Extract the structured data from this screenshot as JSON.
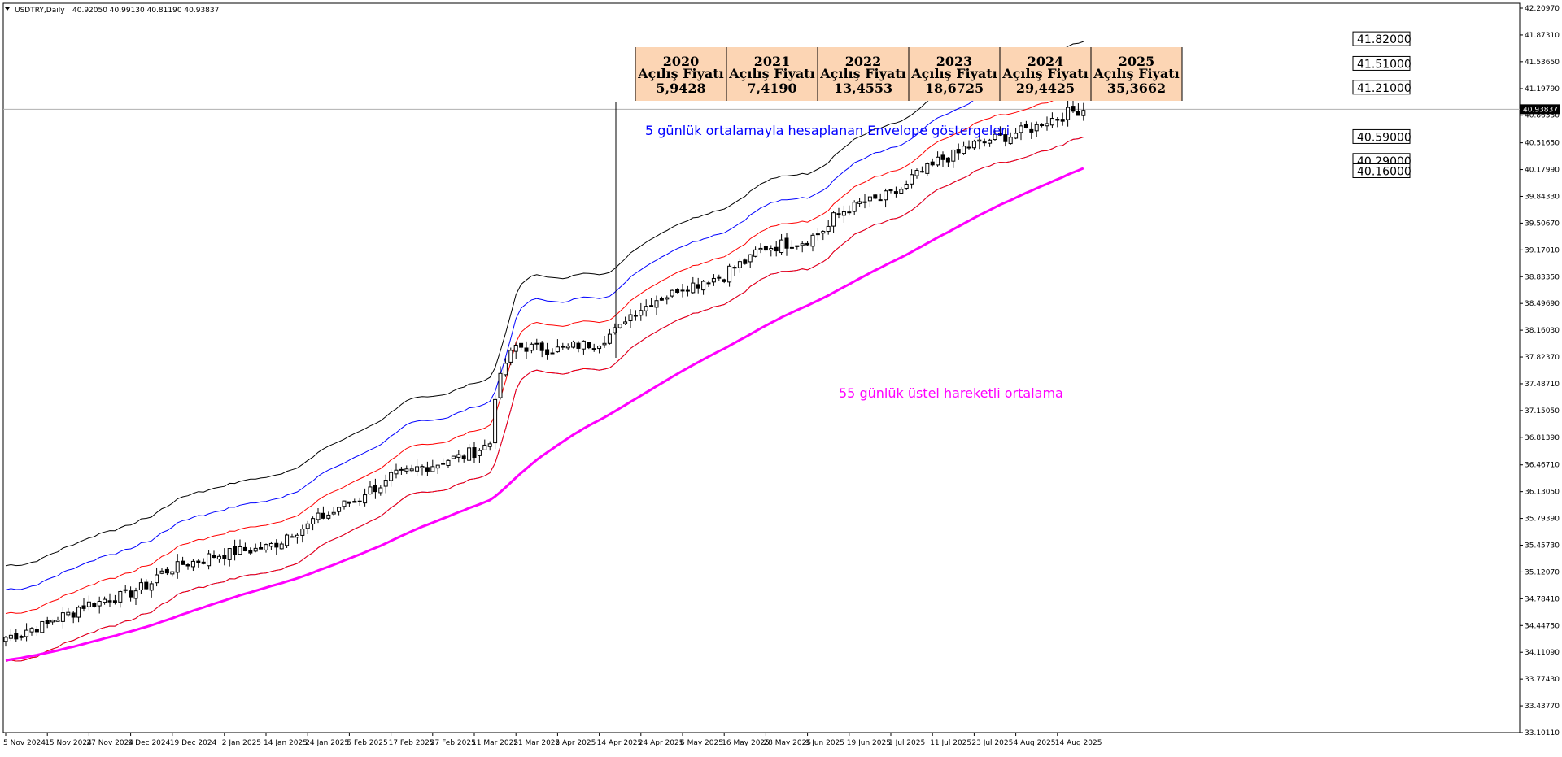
{
  "window": {
    "symbol_label": "USDTRY,Daily",
    "ohlc_label": "40.92050 40.99130 40.81190 40.93837",
    "menu_arrow_icon": "triangle-down-icon"
  },
  "colors": {
    "background": "#ffffff",
    "candle": "#000000",
    "envelope_outer": "#000000",
    "envelope_middle": "#0000ff",
    "envelope_inner": "#ff0000",
    "ema": "#ff00ff",
    "table_fill": "#fcd5b4",
    "annotation_blue": "#0000ff",
    "annotation_magenta": "#ff00ff"
  },
  "annotations": {
    "envelope_note": "5 günlük ortalamayla hesaplanan Envelope göstergeleri",
    "ema_note": "55 günlük üstel hareketli ortalama"
  },
  "yearly_table": [
    {
      "year": "2020",
      "label": "Açılış Fiyatı",
      "value": "5,9428"
    },
    {
      "year": "2021",
      "label": "Açılış Fiyatı",
      "value": "7,4190"
    },
    {
      "year": "2022",
      "label": "Açılış Fiyatı",
      "value": "13,4553"
    },
    {
      "year": "2023",
      "label": "Açılış Fiyatı",
      "value": "18,6725"
    },
    {
      "year": "2024",
      "label": "Açılış Fiyatı",
      "value": "29,4425"
    },
    {
      "year": "2025",
      "label": "Açılış Fiyatı",
      "value": "35,3662"
    }
  ],
  "chart_data": {
    "type": "candlestick",
    "title": "USDTRY,Daily",
    "ylim": [
      33.101,
      42.2097
    ],
    "y_ticks": [
      "42.20970",
      "41.87310",
      "41.53650",
      "41.19790",
      "40.86330",
      "40.51650",
      "40.17990",
      "39.84330",
      "39.50670",
      "39.17010",
      "38.83350",
      "38.49690",
      "38.16030",
      "37.82370",
      "37.48710",
      "37.15050",
      "36.81390",
      "36.46710",
      "36.13050",
      "35.79390",
      "35.45730",
      "35.12070",
      "34.78410",
      "34.44750",
      "34.11090",
      "33.77430",
      "33.43770",
      "33.10110"
    ],
    "x_ticks": [
      "5 Nov 2024",
      "15 Nov 2024",
      "27 Nov 2024",
      "9 Dec 2024",
      "19 Dec 2024",
      "2 Jan 2025",
      "14 Jan 2025",
      "24 Jan 2025",
      "5 Feb 2025",
      "17 Feb 2025",
      "27 Feb 2025",
      "11 Mar 2025",
      "21 Mar 2025",
      "2 Apr 2025",
      "14 Apr 2025",
      "24 Apr 2025",
      "6 May 2025",
      "16 May 2025",
      "28 May 2025",
      "9 Jun 2025",
      "19 Jun 2025",
      "1 Jul 2025",
      "11 Jul 2025",
      "23 Jul 2025",
      "4 Aug 2025",
      "14 Aug 2025"
    ],
    "current_price": "40.93837",
    "level_labels": [
      "41.82000",
      "41.51000",
      "41.21000",
      "40.59000",
      "40.29000",
      "40.16000"
    ],
    "level_values": [
      41.82,
      41.51,
      41.21,
      40.59,
      40.29,
      40.16
    ],
    "anchors": [
      {
        "date": "2024-11-05",
        "close": 34.3
      },
      {
        "date": "2024-11-15",
        "close": 34.46
      },
      {
        "date": "2024-11-27",
        "close": 34.72
      },
      {
        "date": "2024-12-09",
        "close": 34.86
      },
      {
        "date": "2024-12-19",
        "close": 35.17
      },
      {
        "date": "2025-01-02",
        "close": 35.35
      },
      {
        "date": "2025-01-14",
        "close": 35.43
      },
      {
        "date": "2025-01-24",
        "close": 35.7
      },
      {
        "date": "2025-02-05",
        "close": 35.99
      },
      {
        "date": "2025-02-17",
        "close": 36.32
      },
      {
        "date": "2025-02-27",
        "close": 36.47
      },
      {
        "date": "2025-03-11",
        "close": 36.63
      },
      {
        "date": "2025-03-14",
        "close": 36.74
      },
      {
        "date": "2025-03-19",
        "close": 37.75
      },
      {
        "date": "2025-03-21",
        "close": 37.96
      },
      {
        "date": "2025-04-02",
        "close": 37.92
      },
      {
        "date": "2025-04-14",
        "close": 38.02
      },
      {
        "date": "2025-04-24",
        "close": 38.44
      },
      {
        "date": "2025-05-06",
        "close": 38.71
      },
      {
        "date": "2025-05-16",
        "close": 38.84
      },
      {
        "date": "2025-05-28",
        "close": 39.2
      },
      {
        "date": "2025-06-09",
        "close": 39.3
      },
      {
        "date": "2025-06-19",
        "close": 39.7
      },
      {
        "date": "2025-07-01",
        "close": 39.86
      },
      {
        "date": "2025-07-11",
        "close": 40.22
      },
      {
        "date": "2025-07-23",
        "close": 40.5
      },
      {
        "date": "2025-08-04",
        "close": 40.64
      },
      {
        "date": "2025-08-14",
        "close": 40.84
      },
      {
        "date": "2025-08-21",
        "close": 40.94
      }
    ],
    "envelope_offsets": [
      -0.3,
      0.3,
      0.6,
      0.9
    ],
    "ema_period": 55
  }
}
